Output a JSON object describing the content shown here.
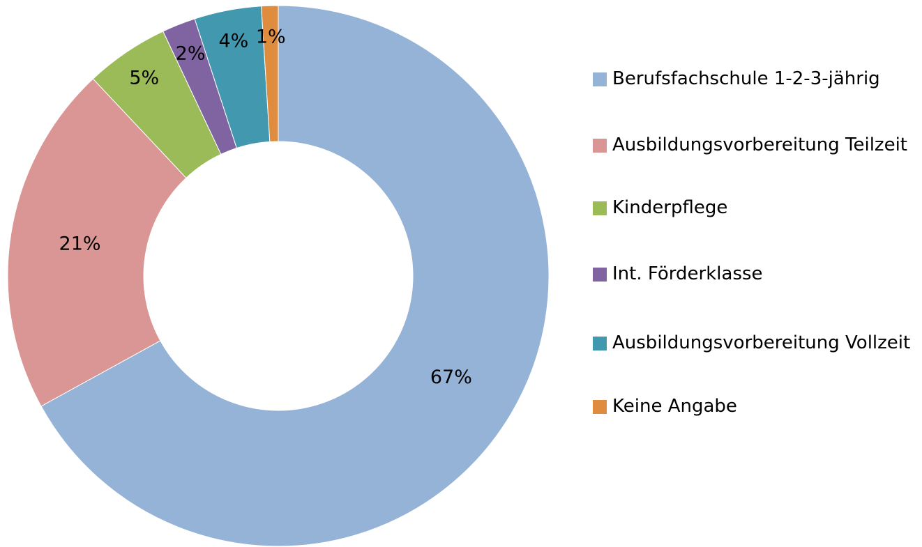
{
  "chart_data": {
    "type": "donut",
    "categories": [
      "Berufsfachschule 1-2-3-jährig",
      "Ausbildungsvorbereitung Teilzeit",
      "Kinderpflege",
      "Int. Förderklasse",
      "Ausbildungsvorbereitung Vollzeit",
      "Keine Angabe"
    ],
    "values": [
      67,
      21,
      5,
      2,
      4,
      1
    ],
    "value_labels": [
      "67%",
      "21%",
      "5%",
      "2%",
      "4%",
      "1%"
    ],
    "colors": [
      "#95b3d7",
      "#d99694",
      "#9bbb59",
      "#8064a2",
      "#4198af",
      "#e08c3f"
    ],
    "legend": "right"
  }
}
